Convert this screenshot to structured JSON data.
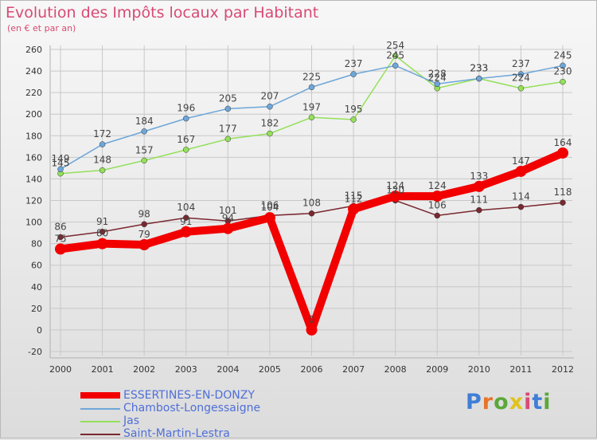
{
  "title": "Evolution des Impôts locaux par Habitant",
  "subtitle": "(en € et par an)",
  "brand": "Proxiti",
  "colors": {
    "essertines": "#f20000",
    "chambost": "#6ea6d9",
    "jas": "#94e05a",
    "saint_martin": "#7a2830",
    "axis": "#b0b0b0",
    "grid": "#c8c8c8",
    "tick_text": "#333333",
    "label_text": "#444444"
  },
  "chart_data": {
    "type": "line",
    "title": "Evolution des Impôts locaux par Habitant",
    "subtitle": "(en € et par an)",
    "xlabel": "",
    "ylabel": "",
    "ylim": [
      -20,
      260
    ],
    "yticks": [
      -20,
      0,
      20,
      40,
      60,
      80,
      100,
      120,
      140,
      160,
      180,
      200,
      220,
      240,
      260
    ],
    "grid": true,
    "legend_position": "bottom-left",
    "x": [
      "2000",
      "2001",
      "2002",
      "2003",
      "2004",
      "2005",
      "2006",
      "2007",
      "2008",
      "2009",
      "2010",
      "2011",
      "2012"
    ],
    "series": [
      {
        "name": "ESSERTINES-EN-DONZY",
        "values": [
          75,
          80,
          79,
          91,
          94,
          104,
          0,
          112,
          124,
          124,
          133,
          147,
          164
        ]
      },
      {
        "name": "Chambost-Longessaigne",
        "values": [
          149,
          172,
          184,
          196,
          205,
          207,
          225,
          237,
          245,
          228,
          233,
          237,
          245
        ]
      },
      {
        "name": "Jas",
        "values": [
          145,
          148,
          157,
          167,
          177,
          182,
          197,
          195,
          254,
          224,
          233,
          224,
          230
        ]
      },
      {
        "name": "Saint-Martin-Lestra",
        "values": [
          86,
          91,
          98,
          104,
          101,
          106,
          108,
          115,
          120,
          106,
          111,
          114,
          118
        ]
      }
    ]
  }
}
